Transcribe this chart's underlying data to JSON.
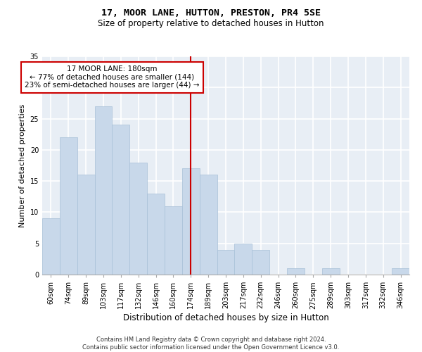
{
  "title1": "17, MOOR LANE, HUTTON, PRESTON, PR4 5SE",
  "title2": "Size of property relative to detached houses in Hutton",
  "xlabel": "Distribution of detached houses by size in Hutton",
  "ylabel": "Number of detached properties",
  "categories": [
    "60sqm",
    "74sqm",
    "89sqm",
    "103sqm",
    "117sqm",
    "132sqm",
    "146sqm",
    "160sqm",
    "174sqm",
    "189sqm",
    "203sqm",
    "217sqm",
    "232sqm",
    "246sqm",
    "260sqm",
    "275sqm",
    "289sqm",
    "303sqm",
    "317sqm",
    "332sqm",
    "346sqm"
  ],
  "values": [
    9,
    22,
    16,
    27,
    24,
    18,
    13,
    11,
    17,
    16,
    4,
    5,
    4,
    0,
    1,
    0,
    1,
    0,
    0,
    0,
    1
  ],
  "bar_color": "#c8d8ea",
  "bar_edge_color": "#a8c0d8",
  "annotation_box_text": "17 MOOR LANE: 180sqm\n← 77% of detached houses are smaller (144)\n23% of semi-detached houses are larger (44) →",
  "annotation_box_color": "#cc0000",
  "vline_x_index": 8,
  "vline_color": "#cc0000",
  "ylim": [
    0,
    35
  ],
  "yticks": [
    0,
    5,
    10,
    15,
    20,
    25,
    30,
    35
  ],
  "background_color": "#e8eef5",
  "grid_color": "#ffffff",
  "footer": "Contains HM Land Registry data © Crown copyright and database right 2024.\nContains public sector information licensed under the Open Government Licence v3.0.",
  "title1_fontsize": 9.5,
  "title2_fontsize": 8.5,
  "xlabel_fontsize": 8.5,
  "ylabel_fontsize": 8,
  "tick_fontsize": 7,
  "annotation_fontsize": 7.5,
  "footer_fontsize": 6
}
